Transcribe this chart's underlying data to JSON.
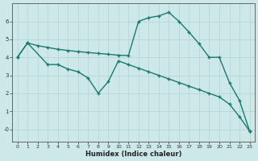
{
  "line1_x": [
    0,
    1,
    2,
    3,
    4,
    5,
    6,
    7,
    8,
    9,
    10,
    11,
    12,
    13,
    14,
    15,
    16,
    17,
    18,
    19,
    20,
    21,
    22,
    23
  ],
  "line1_y": [
    4.0,
    4.8,
    4.65,
    4.55,
    4.45,
    4.38,
    4.32,
    4.27,
    4.22,
    4.17,
    4.12,
    4.1,
    6.0,
    6.2,
    6.3,
    6.5,
    6.0,
    5.4,
    4.75,
    4.0,
    4.0,
    2.6,
    1.6,
    -0.1
  ],
  "line2_x": [
    0,
    1,
    3,
    4,
    5,
    6,
    7,
    8,
    9,
    10,
    11,
    12,
    13,
    14,
    15,
    16,
    17,
    18,
    19,
    20,
    21,
    22,
    23
  ],
  "line2_y": [
    4.0,
    4.8,
    3.6,
    3.6,
    3.35,
    3.2,
    2.85,
    2.0,
    2.65,
    3.8,
    3.6,
    3.4,
    3.2,
    3.0,
    2.8,
    2.6,
    2.4,
    2.2,
    2.0,
    1.8,
    1.4,
    0.7,
    -0.1
  ],
  "color": "#1a7a6e",
  "bg_color": "#cde8e8",
  "grid_major_color": "#b8d4d4",
  "grid_minor_color": "#d0e8e8",
  "xlabel": "Humidex (Indice chaleur)",
  "xlim": [
    -0.5,
    23.5
  ],
  "ylim": [
    -0.7,
    7.0
  ],
  "yticks": [
    0,
    1,
    2,
    3,
    4,
    5,
    6
  ],
  "xticks": [
    0,
    1,
    2,
    3,
    4,
    5,
    6,
    7,
    8,
    9,
    10,
    11,
    12,
    13,
    14,
    15,
    16,
    17,
    18,
    19,
    20,
    21,
    22,
    23
  ]
}
